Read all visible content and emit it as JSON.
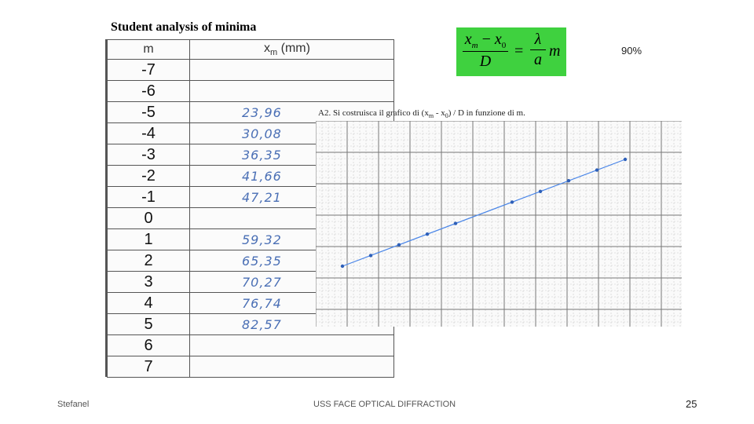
{
  "title": "Student analysis of minima",
  "table": {
    "header_m": "m",
    "header_x_main": "x",
    "header_x_sub": "m",
    "header_x_unit": " (mm)",
    "rows": [
      {
        "m": "-7",
        "x": ""
      },
      {
        "m": "-6",
        "x": ""
      },
      {
        "m": "-5",
        "x": "23,96"
      },
      {
        "m": "-4",
        "x": "30,08"
      },
      {
        "m": "-3",
        "x": "36,35"
      },
      {
        "m": "-2",
        "x": "41,66"
      },
      {
        "m": "-1",
        "x": "47,21"
      },
      {
        "m": "0",
        "x": ""
      },
      {
        "m": "1",
        "x": "59,32"
      },
      {
        "m": "2",
        "x": "65,35"
      },
      {
        "m": "3",
        "x": "70,27"
      },
      {
        "m": "4",
        "x": "76,74"
      },
      {
        "m": "5",
        "x": "82,57"
      },
      {
        "m": "6",
        "x": ""
      },
      {
        "m": "7",
        "x": ""
      }
    ]
  },
  "formula": {
    "numerator": "x",
    "numerator_sub1": "m",
    "minus": " − ",
    "numerator_x0": "x",
    "numerator_sub2": "0",
    "denominator_left": "D",
    "equals": "=",
    "lambda": "λ",
    "denominator_right": "a",
    "m": "m",
    "color": "#3fd13f"
  },
  "percent": "90%",
  "graph": {
    "label_prefix": "A2. Si costruisca il grafico di (x",
    "label_sub1": "m",
    "label_mid": " - x",
    "label_sub2": "0",
    "label_suffix": ") / D  in funzione di m.",
    "line_color": "#4a86e8",
    "points": [
      {
        "m": -5,
        "y": 0.0
      },
      {
        "m": -4,
        "y": 0.045
      },
      {
        "m": -3,
        "y": 0.09
      },
      {
        "m": -2,
        "y": 0.135
      },
      {
        "m": -1,
        "y": 0.18
      },
      {
        "m": 1,
        "y": 0.27
      },
      {
        "m": 2,
        "y": 0.315
      },
      {
        "m": 3,
        "y": 0.36
      },
      {
        "m": 4,
        "y": 0.405
      },
      {
        "m": 5,
        "y": 0.45
      }
    ]
  },
  "footer": {
    "left": "Stefanel",
    "center": "USS FACE OPTICAL DIFFRACTION",
    "page": "25"
  }
}
